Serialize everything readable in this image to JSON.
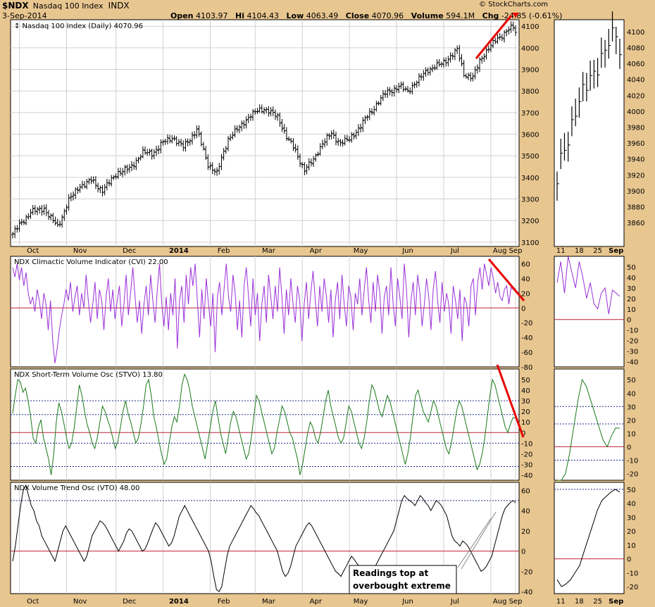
{
  "header": {
    "ticker": "$NDX",
    "description": "Nasdaq 100 Index",
    "exchange": "INDX",
    "date": "3-Sep-2014",
    "open_label": "Open",
    "open": "4103.97",
    "high": "4104.43",
    "low_label": "Low",
    "low": "4063.49",
    "close_label": "Close",
    "close": "4070.96",
    "volume_label": "Volume",
    "volume": "594.1M",
    "chg_label": "Chg",
    "chg": "-24.85 (-0.61%)",
    "logo": "© StockCharts.com"
  },
  "chart_data": [
    {
      "type": "ohlc",
      "title": "Nasdaq 100 Index (Daily) 4070.96",
      "ylim": [
        3080,
        4130
      ],
      "yticks": [
        3100,
        3200,
        3300,
        3400,
        3500,
        3600,
        3700,
        3800,
        3900,
        4000,
        4100
      ],
      "xticks": [
        "Oct",
        "Nov",
        "Dec",
        "2014",
        "Feb",
        "Mar",
        "Apr",
        "May",
        "Jun",
        "Jul",
        "Aug",
        "Sep"
      ],
      "close_anchors": [
        [
          0,
          3140
        ],
        [
          8,
          3240
        ],
        [
          14,
          3255
        ],
        [
          20,
          3170
        ],
        [
          25,
          3295
        ],
        [
          30,
          3360
        ],
        [
          35,
          3385
        ],
        [
          40,
          3340
        ],
        [
          47,
          3425
        ],
        [
          52,
          3440
        ],
        [
          58,
          3515
        ],
        [
          62,
          3510
        ],
        [
          67,
          3560
        ],
        [
          71,
          3585
        ],
        [
          76,
          3540
        ],
        [
          82,
          3620
        ],
        [
          87,
          3460
        ],
        [
          91,
          3420
        ],
        [
          96,
          3580
        ],
        [
          100,
          3620
        ],
        [
          106,
          3690
        ],
        [
          112,
          3720
        ],
        [
          118,
          3680
        ],
        [
          122,
          3590
        ],
        [
          126,
          3520
        ],
        [
          130,
          3435
        ],
        [
          134,
          3480
        ],
        [
          138,
          3560
        ],
        [
          142,
          3600
        ],
        [
          146,
          3560
        ],
        [
          150,
          3575
        ],
        [
          155,
          3640
        ],
        [
          160,
          3710
        ],
        [
          166,
          3790
        ],
        [
          172,
          3820
        ],
        [
          176,
          3800
        ],
        [
          181,
          3855
        ],
        [
          185,
          3900
        ],
        [
          190,
          3920
        ],
        [
          194,
          3950
        ],
        [
          198,
          3990
        ],
        [
          201,
          3880
        ],
        [
          205,
          3860
        ],
        [
          208,
          3940
        ],
        [
          212,
          4000
        ],
        [
          216,
          4040
        ],
        [
          220,
          4080
        ],
        [
          223,
          4095
        ],
        [
          224,
          4070.96
        ]
      ]
    },
    {
      "type": "line",
      "title": "NDX Climactic Volume Indicator (CVI) 22.00",
      "ylim": [
        -80,
        70
      ],
      "yticks": [
        -80,
        -60,
        -40,
        -20,
        0,
        20,
        40,
        60
      ],
      "series": [
        {
          "values": [
            55,
            42,
            60,
            38,
            55,
            30,
            48,
            20,
            5,
            15,
            -5,
            25,
            10,
            -15,
            20,
            5,
            -30,
            10,
            -45,
            -75,
            -55,
            -30,
            -10,
            5,
            25,
            10,
            35,
            -5,
            15,
            30,
            -10,
            20,
            0,
            45,
            10,
            -20,
            5,
            35,
            -15,
            25,
            10,
            -30,
            15,
            40,
            -5,
            25,
            -15,
            10,
            30,
            -25,
            5,
            45,
            -10,
            20,
            55,
            15,
            -20,
            10,
            -35,
            5,
            30,
            -10,
            45,
            10,
            -20,
            25,
            60,
            5,
            -25,
            15,
            -30,
            20,
            -10,
            40,
            -55,
            10,
            30,
            -20,
            45,
            5,
            55,
            30,
            60,
            10,
            -40,
            25,
            -15,
            40,
            5,
            -25,
            20,
            -60,
            15,
            35,
            -10,
            25,
            60,
            15,
            -5,
            45,
            20,
            -30,
            10,
            -40,
            30,
            55,
            15,
            -25,
            40,
            -10,
            20,
            -45,
            5,
            30,
            -20,
            45,
            15,
            -15,
            30,
            -5,
            55,
            15,
            -35,
            25,
            -10,
            40,
            5,
            -20,
            30,
            10,
            -45,
            5,
            35,
            -15,
            20,
            50,
            10,
            -25,
            30,
            -5,
            40,
            15,
            -20,
            25,
            -40,
            10,
            35,
            -15,
            45,
            5,
            -25,
            30,
            15,
            -30,
            20,
            5,
            40,
            -10,
            25,
            55,
            10,
            -20,
            35,
            -5,
            45,
            20,
            -35,
            15,
            30,
            -10,
            55,
            5,
            -25,
            40,
            15,
            -15,
            60,
            25,
            -40,
            10,
            35,
            -10,
            45,
            20,
            -25,
            5,
            40,
            15,
            -30,
            25,
            50,
            10,
            -20,
            35,
            -5,
            20,
            5,
            -35,
            30,
            10,
            -15,
            25,
            -45,
            15,
            5,
            -25,
            30,
            40,
            -10,
            35,
            55,
            25,
            60,
            45,
            30,
            55,
            40,
            20,
            35,
            15,
            10,
            25,
            30,
            5,
            28,
            25,
            22
          ]
        }
      ]
    },
    {
      "type": "line",
      "title": "NDX Short-Term Volume Osc (STVO) 13.80",
      "ylim": [
        -45,
        60
      ],
      "yticks": [
        -40,
        -30,
        -20,
        -10,
        0,
        10,
        20,
        30,
        40,
        50
      ],
      "hlines_dotted": [
        30,
        17,
        -10,
        -32
      ],
      "series": [
        {
          "values": [
            18,
            35,
            50,
            48,
            38,
            42,
            30,
            15,
            -5,
            -10,
            5,
            12,
            -5,
            -15,
            -25,
            -40,
            -20,
            10,
            28,
            20,
            8,
            -5,
            -15,
            -10,
            5,
            25,
            45,
            35,
            20,
            8,
            0,
            -10,
            -15,
            -5,
            10,
            25,
            20,
            12,
            5,
            -5,
            -15,
            -8,
            5,
            20,
            30,
            18,
            10,
            0,
            -10,
            -5,
            8,
            25,
            45,
            50,
            35,
            15,
            5,
            -8,
            -20,
            -30,
            -25,
            -10,
            5,
            15,
            10,
            25,
            45,
            55,
            50,
            40,
            25,
            15,
            5,
            -5,
            -15,
            -25,
            -10,
            5,
            20,
            30,
            15,
            0,
            -10,
            -20,
            -5,
            10,
            20,
            15,
            5,
            -5,
            -15,
            -25,
            -20,
            -5,
            15,
            35,
            30,
            20,
            10,
            0,
            -10,
            -20,
            -15,
            0,
            12,
            25,
            20,
            10,
            0,
            -5,
            -15,
            -25,
            -40,
            -30,
            -15,
            0,
            10,
            5,
            -5,
            -10,
            0,
            15,
            30,
            40,
            25,
            15,
            5,
            -5,
            -10,
            -5,
            10,
            25,
            20,
            10,
            0,
            -10,
            -15,
            -5,
            10,
            30,
            45,
            40,
            30,
            20,
            15,
            25,
            35,
            30,
            20,
            10,
            0,
            -10,
            -20,
            -30,
            -20,
            -5,
            15,
            35,
            40,
            30,
            20,
            15,
            10,
            20,
            30,
            25,
            15,
            5,
            -5,
            -15,
            -20,
            -10,
            5,
            20,
            30,
            25,
            15,
            5,
            -5,
            -15,
            -25,
            -35,
            -30,
            -20,
            -5,
            15,
            35,
            50,
            45,
            35,
            25,
            15,
            5,
            0,
            8,
            14,
            13.8
          ]
        }
      ]
    },
    {
      "type": "line",
      "title": "NDX Volume Trend Osc (VTO) 48.00",
      "ylim": [
        -42,
        68
      ],
      "yticks": [
        -40,
        -20,
        0,
        20,
        40,
        60
      ],
      "hlines_dotted": [
        50
      ],
      "series": [
        {
          "values": [
            -10,
            5,
            25,
            45,
            60,
            65,
            55,
            45,
            40,
            30,
            25,
            15,
            10,
            5,
            0,
            -5,
            -10,
            0,
            10,
            20,
            25,
            20,
            15,
            10,
            5,
            0,
            -5,
            -10,
            -5,
            5,
            15,
            20,
            25,
            30,
            28,
            25,
            20,
            15,
            10,
            5,
            0,
            5,
            10,
            18,
            22,
            20,
            15,
            10,
            5,
            0,
            2,
            8,
            15,
            22,
            28,
            25,
            20,
            15,
            10,
            5,
            8,
            15,
            25,
            35,
            40,
            45,
            40,
            35,
            30,
            25,
            20,
            15,
            10,
            5,
            0,
            -10,
            -25,
            -38,
            -40,
            -35,
            -20,
            -5,
            5,
            10,
            15,
            20,
            25,
            30,
            35,
            40,
            45,
            42,
            38,
            35,
            30,
            25,
            20,
            15,
            10,
            5,
            0,
            -10,
            -20,
            -25,
            -22,
            -15,
            -5,
            5,
            10,
            15,
            20,
            25,
            28,
            25,
            20,
            15,
            10,
            5,
            0,
            -5,
            -10,
            -15,
            -20,
            -22,
            -25,
            -20,
            -15,
            -10,
            -5,
            -8,
            -12,
            -15,
            -20,
            -25,
            -28,
            -25,
            -20,
            -15,
            -10,
            -5,
            0,
            5,
            10,
            15,
            20,
            30,
            40,
            50,
            55,
            52,
            50,
            48,
            45,
            50,
            55,
            52,
            48,
            45,
            40,
            45,
            50,
            48,
            45,
            40,
            35,
            25,
            15,
            10,
            8,
            5,
            10,
            8,
            5,
            0,
            -5,
            -10,
            -15,
            -20,
            -18,
            -15,
            -10,
            -5,
            5,
            15,
            25,
            35,
            42,
            45,
            48,
            50,
            48
          ]
        }
      ]
    }
  ],
  "zoom_panel": {
    "xticks": [
      "11",
      "18",
      "25",
      "Sep"
    ],
    "price_yticks": [
      3860,
      3880,
      3900,
      3920,
      3940,
      3960,
      3980,
      4000,
      4020,
      4040,
      4060,
      4080,
      4100
    ],
    "cvi_yticks": [
      -40,
      -30,
      -20,
      -10,
      0,
      10,
      20,
      30,
      40,
      50
    ],
    "stvo_yticks": [
      -20,
      -10,
      0,
      10,
      20,
      30,
      40,
      50
    ],
    "vto_yticks": [
      -20,
      -10,
      0,
      10,
      20,
      30,
      40,
      50
    ]
  },
  "annotation": {
    "line1": "Readings top at",
    "line2": "overbought extreme"
  },
  "colors": {
    "background": "#e8c690",
    "plot_bg": "#ffffff",
    "cvi": "#9b30d9",
    "stvo": "#1a7a1a",
    "vto": "#000000",
    "zero_line": "#c0203a",
    "trend_marker": "#e80000",
    "grid": "#d0d0d0"
  }
}
